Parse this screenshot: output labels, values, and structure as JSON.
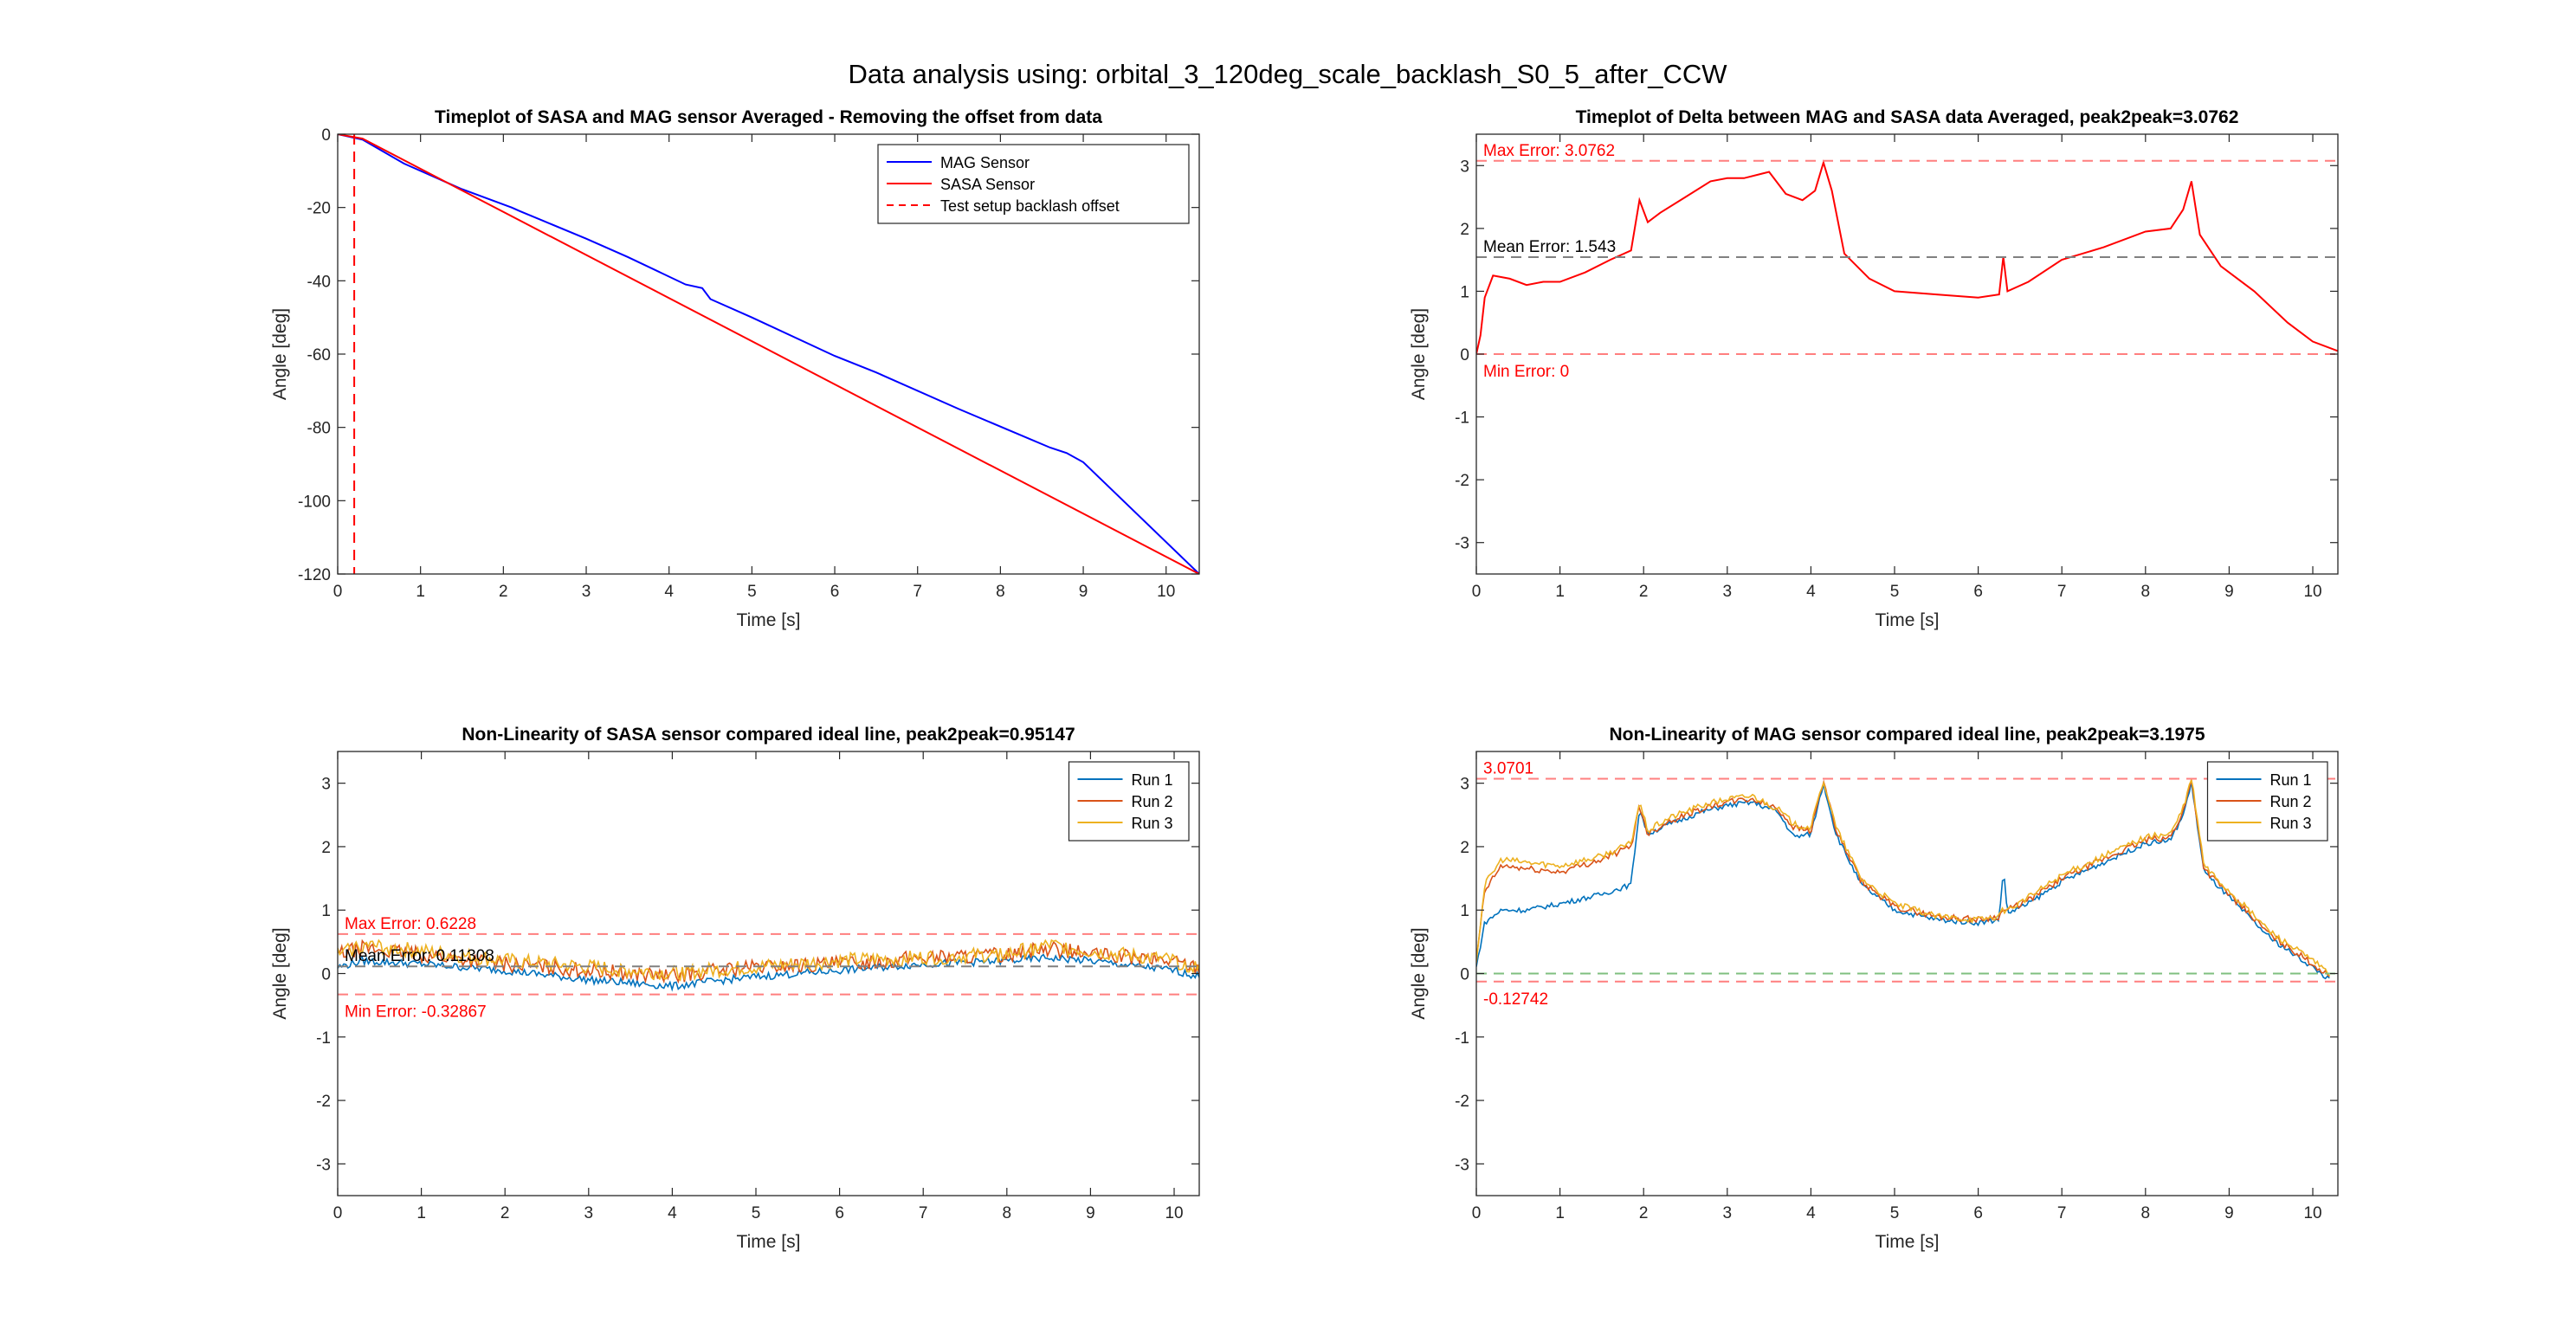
{
  "figure_title": "Data analysis using: orbital_3_120deg_scale_backlash_S0_5_after_CCW",
  "chart_data": [
    {
      "type": "line",
      "title": "Timeplot of SASA and MAG sensor Averaged - Removing the offset from data",
      "xlabel": "Time [s]",
      "ylabel": "Angle [deg]",
      "xlim": [
        0,
        10.4
      ],
      "ylim": [
        -120,
        0
      ],
      "xticks": [
        0,
        1,
        2,
        3,
        4,
        5,
        6,
        7,
        8,
        9,
        10
      ],
      "yticks": [
        -120,
        -100,
        -80,
        -60,
        -40,
        -20,
        0
      ],
      "legend_position": "top-right",
      "legend": [
        "MAG Sensor",
        "SASA Sensor",
        "Test setup backlash offset"
      ],
      "series": [
        {
          "name": "MAG Sensor",
          "color": "#0000ff",
          "style": "solid",
          "x": [
            0,
            0.3,
            0.8,
            1.5,
            2.1,
            2.2,
            3.0,
            3.5,
            4.2,
            4.4,
            4.5,
            5.0,
            6.0,
            6.5,
            6.6,
            7.5,
            8.6,
            8.8,
            9.0,
            10.4
          ],
          "y": [
            0,
            -1.5,
            -8,
            -15,
            -20,
            -21,
            -28.5,
            -33.5,
            -41,
            -42,
            -45,
            -50,
            -60.5,
            -65,
            -66,
            -75,
            -85.5,
            -87,
            -89.5,
            -120
          ]
        },
        {
          "name": "SASA Sensor",
          "color": "#ff0000",
          "style": "solid",
          "x": [
            0,
            0.3,
            10.4
          ],
          "y": [
            0,
            -1.2,
            -120
          ]
        },
        {
          "name": "Test setup backlash offset",
          "color": "#ff0000",
          "style": "dashed",
          "x": [
            0.2,
            0.2
          ],
          "y": [
            0,
            -120
          ]
        }
      ]
    },
    {
      "type": "line",
      "title": "Timeplot of Delta between MAG and SASA data Averaged, peak2peak=3.0762",
      "xlabel": "Time [s]",
      "ylabel": "Angle [deg]",
      "xlim": [
        0,
        10.3
      ],
      "ylim": [
        -3.5,
        3.5
      ],
      "xticks": [
        0,
        1,
        2,
        3,
        4,
        5,
        6,
        7,
        8,
        9,
        10
      ],
      "yticks": [
        -3,
        -2,
        -1,
        0,
        1,
        2,
        3
      ],
      "annotations": [
        {
          "text": "Max Error: 3.0762",
          "y": 3.0762,
          "color": "#ff0000"
        },
        {
          "text": "Mean Error: 1.543",
          "y": 1.543,
          "color": "#000000"
        },
        {
          "text": "Min Error: 0",
          "y": 0,
          "color": "#ff0000"
        }
      ],
      "series": [
        {
          "name": "",
          "color": "#ff0000",
          "style": "solid",
          "x": [
            0,
            0.05,
            0.1,
            0.2,
            0.4,
            0.6,
            0.8,
            1.0,
            1.3,
            1.6,
            1.85,
            1.95,
            2.05,
            2.2,
            2.5,
            2.8,
            3.0,
            3.2,
            3.5,
            3.7,
            3.9,
            4.05,
            4.15,
            4.25,
            4.4,
            4.7,
            5.0,
            5.5,
            6.0,
            6.25,
            6.3,
            6.35,
            6.6,
            7.0,
            7.5,
            8.0,
            8.3,
            8.45,
            8.55,
            8.65,
            8.9,
            9.3,
            9.7,
            10.0,
            10.3
          ],
          "y": [
            0,
            0.3,
            0.9,
            1.25,
            1.2,
            1.1,
            1.15,
            1.15,
            1.3,
            1.5,
            1.65,
            2.45,
            2.1,
            2.25,
            2.5,
            2.75,
            2.8,
            2.8,
            2.9,
            2.55,
            2.45,
            2.6,
            3.05,
            2.6,
            1.6,
            1.2,
            1.0,
            0.95,
            0.9,
            0.95,
            1.55,
            1.0,
            1.15,
            1.5,
            1.7,
            1.95,
            2.0,
            2.3,
            2.75,
            1.9,
            1.4,
            1.0,
            0.5,
            0.2,
            0.05
          ]
        },
        {
          "name": "",
          "color": "#ff7f7f",
          "style": "dashed",
          "x": [
            0,
            10.3
          ],
          "y": [
            3.0762,
            3.0762
          ]
        },
        {
          "name": "",
          "color": "#808080",
          "style": "dashed",
          "x": [
            0,
            10.3
          ],
          "y": [
            1.543,
            1.543
          ]
        },
        {
          "name": "",
          "color": "#ff7f7f",
          "style": "dashed",
          "x": [
            0,
            10.3
          ],
          "y": [
            0,
            0
          ]
        }
      ]
    },
    {
      "type": "line",
      "title": "Non-Linearity of SASA sensor compared ideal line, peak2peak=0.95147",
      "xlabel": "Time [s]",
      "ylabel": "Angle [deg]",
      "xlim": [
        0,
        10.3
      ],
      "ylim": [
        -3.5,
        3.5
      ],
      "xticks": [
        0,
        1,
        2,
        3,
        4,
        5,
        6,
        7,
        8,
        9,
        10
      ],
      "yticks": [
        -3,
        -2,
        -1,
        0,
        1,
        2,
        3
      ],
      "legend_position": "top-right",
      "legend": [
        "Run 1",
        "Run 2",
        "Run 3"
      ],
      "annotations": [
        {
          "text": "Max Error: 0.6228",
          "y": 0.6228,
          "color": "#ff0000"
        },
        {
          "text": "Mean Error: 0.11308",
          "y": 0.11308,
          "color": "#000000"
        },
        {
          "text": "Min Error: -0.32867",
          "y": -0.32867,
          "color": "#ff0000"
        }
      ],
      "series": [
        {
          "name": "Run 1",
          "color": "#0072bd",
          "style": "solid",
          "noise": 0.06,
          "x": [
            0,
            0.3,
            1,
            2,
            3,
            3.5,
            4,
            4.5,
            5,
            6,
            7,
            8,
            8.5,
            9,
            10,
            10.3
          ],
          "y": [
            0.1,
            0.2,
            0.15,
            0.05,
            -0.1,
            -0.15,
            -0.2,
            -0.12,
            -0.05,
            0.05,
            0.15,
            0.2,
            0.25,
            0.2,
            0.05,
            -0.05
          ]
        },
        {
          "name": "Run 2",
          "color": "#d95319",
          "style": "solid",
          "noise": 0.12,
          "x": [
            0,
            0.3,
            1,
            2,
            3,
            3.5,
            4,
            4.5,
            5,
            6,
            7,
            8,
            8.5,
            9,
            10,
            10.3
          ],
          "y": [
            0.3,
            0.4,
            0.3,
            0.15,
            0.05,
            0,
            -0.05,
            0.05,
            0.1,
            0.15,
            0.25,
            0.3,
            0.4,
            0.3,
            0.2,
            0.1
          ]
        },
        {
          "name": "Run 3",
          "color": "#edb120",
          "style": "solid",
          "noise": 0.12,
          "x": [
            0,
            0.3,
            1,
            2,
            3,
            3.5,
            4,
            4.5,
            5,
            6,
            7,
            8,
            8.5,
            9,
            10,
            10.3
          ],
          "y": [
            0.3,
            0.45,
            0.35,
            0.2,
            0.1,
            0.05,
            0,
            0.05,
            0.1,
            0.2,
            0.25,
            0.3,
            0.45,
            0.35,
            0.2,
            0.1
          ]
        },
        {
          "name": "",
          "color": "#ff7f7f",
          "style": "dashed",
          "x": [
            0,
            10.3
          ],
          "y": [
            0.6228,
            0.6228
          ]
        },
        {
          "name": "",
          "color": "#808080",
          "style": "dashed",
          "x": [
            0,
            10.3
          ],
          "y": [
            0.11308,
            0.11308
          ]
        },
        {
          "name": "",
          "color": "#ff7f7f",
          "style": "dashed",
          "x": [
            0,
            10.3
          ],
          "y": [
            -0.32867,
            -0.32867
          ]
        }
      ]
    },
    {
      "type": "line",
      "title": "Non-Linearity of MAG sensor compared ideal line, peak2peak=3.1975",
      "xlabel": "Time [s]",
      "ylabel": "Angle [deg]",
      "xlim": [
        0,
        10.3
      ],
      "ylim": [
        -3.5,
        3.5
      ],
      "xticks": [
        0,
        1,
        2,
        3,
        4,
        5,
        6,
        7,
        8,
        9,
        10
      ],
      "yticks": [
        -3,
        -2,
        -1,
        0,
        1,
        2,
        3
      ],
      "legend_position": "top-right",
      "legend": [
        "Run 1",
        "Run 2",
        "Run 3"
      ],
      "annotations": [
        {
          "text": "3.0701",
          "y": 3.0701,
          "color": "#ff0000"
        },
        {
          "text": "-0.12742",
          "y": -0.12742,
          "color": "#ff0000"
        }
      ],
      "series": [
        {
          "name": "Run 1",
          "color": "#0072bd",
          "style": "solid",
          "noise": 0.04,
          "x": [
            0,
            0.1,
            0.3,
            0.6,
            1.0,
            1.5,
            1.85,
            1.95,
            2.05,
            2.3,
            2.7,
            3.0,
            3.3,
            3.6,
            3.8,
            4.0,
            4.15,
            4.3,
            4.6,
            5.0,
            5.5,
            6.0,
            6.25,
            6.3,
            6.35,
            6.6,
            7.0,
            7.5,
            8.0,
            8.3,
            8.45,
            8.55,
            8.7,
            9.0,
            9.5,
            10.0,
            10.2
          ],
          "y": [
            0.1,
            0.8,
            1.0,
            1.0,
            1.1,
            1.25,
            1.4,
            2.6,
            2.2,
            2.35,
            2.55,
            2.65,
            2.7,
            2.55,
            2.15,
            2.2,
            3.0,
            2.2,
            1.4,
            1.0,
            0.85,
            0.8,
            0.85,
            1.65,
            0.95,
            1.1,
            1.45,
            1.75,
            2.05,
            2.1,
            2.5,
            3.0,
            1.6,
            1.2,
            0.55,
            0.1,
            -0.1
          ]
        },
        {
          "name": "Run 2",
          "color": "#d95319",
          "style": "solid",
          "noise": 0.05,
          "x": [
            0,
            0.1,
            0.3,
            0.6,
            1.0,
            1.5,
            1.85,
            1.95,
            2.05,
            2.3,
            2.7,
            3.0,
            3.3,
            3.6,
            3.8,
            4.0,
            4.15,
            4.3,
            4.6,
            5.0,
            5.5,
            6.0,
            6.25,
            6.3,
            6.35,
            6.6,
            7.0,
            7.5,
            8.0,
            8.3,
            8.45,
            8.55,
            8.7,
            9.0,
            9.5,
            10.0,
            10.2
          ],
          "y": [
            0.2,
            1.3,
            1.7,
            1.65,
            1.6,
            1.8,
            2.0,
            2.65,
            2.2,
            2.4,
            2.6,
            2.7,
            2.75,
            2.6,
            2.3,
            2.25,
            3.05,
            2.25,
            1.45,
            1.05,
            0.9,
            0.85,
            0.9,
            1.0,
            1.0,
            1.15,
            1.5,
            1.8,
            2.1,
            2.15,
            2.55,
            3.05,
            1.65,
            1.25,
            0.6,
            0.15,
            -0.05
          ]
        },
        {
          "name": "Run 3",
          "color": "#edb120",
          "style": "solid",
          "noise": 0.05,
          "x": [
            0,
            0.1,
            0.3,
            0.6,
            1.0,
            1.5,
            1.85,
            1.95,
            2.05,
            2.3,
            2.7,
            3.0,
            3.3,
            3.6,
            3.8,
            4.0,
            4.15,
            4.3,
            4.6,
            5.0,
            5.5,
            6.0,
            6.25,
            6.3,
            6.35,
            6.6,
            7.0,
            7.5,
            8.0,
            8.3,
            8.45,
            8.55,
            8.7,
            9.0,
            9.5,
            10.0,
            10.2
          ],
          "y": [
            0.2,
            1.4,
            1.8,
            1.75,
            1.7,
            1.85,
            2.05,
            2.7,
            2.25,
            2.45,
            2.65,
            2.75,
            2.8,
            2.6,
            2.35,
            2.3,
            3.05,
            2.3,
            1.5,
            1.1,
            0.9,
            0.85,
            0.9,
            1.0,
            1.0,
            1.2,
            1.55,
            1.85,
            2.15,
            2.2,
            2.6,
            3.07,
            1.7,
            1.3,
            0.65,
            0.2,
            0.0
          ]
        },
        {
          "name": "",
          "color": "#ff7f7f",
          "style": "dashed",
          "x": [
            0,
            10.3
          ],
          "y": [
            3.0701,
            3.0701
          ]
        },
        {
          "name": "",
          "color": "#7fbf7f",
          "style": "dashed",
          "x": [
            0,
            10.3
          ],
          "y": [
            0,
            0
          ]
        },
        {
          "name": "",
          "color": "#ff7f7f",
          "style": "dashed",
          "x": [
            0,
            10.3
          ],
          "y": [
            -0.12742,
            -0.12742
          ]
        }
      ]
    }
  ]
}
